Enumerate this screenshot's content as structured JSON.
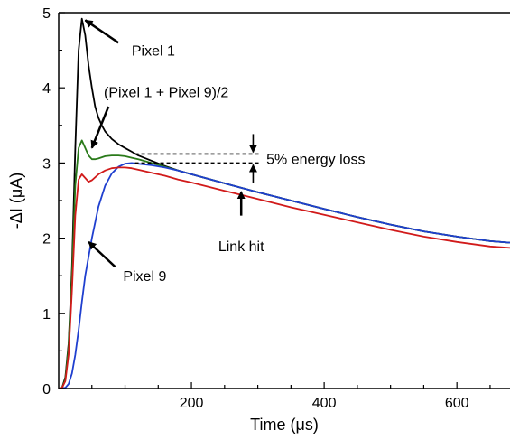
{
  "chart_data": {
    "type": "line",
    "title": "",
    "xlabel": "Time (μs)",
    "ylabel": "-ΔI (μA)",
    "xlim": [
      0,
      680
    ],
    "ylim": [
      0,
      5
    ],
    "xticks": [
      200,
      400,
      600
    ],
    "yticks": [
      0,
      1,
      2,
      3,
      4,
      5
    ],
    "grid": false,
    "series": [
      {
        "name": "Pixel 1",
        "color": "#000000",
        "x": [
          0,
          5,
          10,
          15,
          20,
          25,
          30,
          35,
          40,
          45,
          50,
          55,
          60,
          65,
          70,
          80,
          90,
          100,
          110,
          120,
          140,
          160,
          180,
          200,
          250,
          300,
          350,
          400,
          450,
          500,
          550,
          600,
          650,
          680
        ],
        "y": [
          0,
          0.01,
          0.15,
          0.6,
          1.6,
          3.2,
          4.5,
          4.92,
          4.7,
          4.3,
          4.0,
          3.75,
          3.6,
          3.5,
          3.42,
          3.32,
          3.25,
          3.2,
          3.15,
          3.1,
          3.03,
          2.96,
          2.9,
          2.85,
          2.73,
          2.61,
          2.5,
          2.39,
          2.28,
          2.18,
          2.09,
          2.02,
          1.96,
          1.94
        ]
      },
      {
        "name": "(Pixel 1 + Pixel 9)/2",
        "color": "#2a7a1a",
        "x": [
          0,
          5,
          10,
          15,
          20,
          25,
          30,
          35,
          40,
          45,
          50,
          55,
          60,
          70,
          80,
          90,
          100,
          110,
          120,
          140,
          160,
          180,
          200,
          250,
          300,
          350,
          400,
          450,
          500,
          550,
          600,
          650,
          680
        ],
        "y": [
          0,
          0.01,
          0.12,
          0.55,
          1.5,
          2.7,
          3.2,
          3.3,
          3.2,
          3.1,
          3.05,
          3.05,
          3.06,
          3.09,
          3.1,
          3.1,
          3.09,
          3.07,
          3.05,
          3.0,
          2.95,
          2.9,
          2.85,
          2.73,
          2.61,
          2.5,
          2.39,
          2.28,
          2.18,
          2.09,
          2.02,
          1.96,
          1.94
        ]
      },
      {
        "name": "Pixel 9",
        "color": "#1f3fcf",
        "x": [
          0,
          10,
          15,
          20,
          25,
          30,
          35,
          40,
          50,
          60,
          70,
          80,
          90,
          100,
          110,
          120,
          140,
          160,
          180,
          200,
          250,
          300,
          350,
          400,
          450,
          500,
          550,
          600,
          650,
          680
        ],
        "y": [
          0,
          0.01,
          0.06,
          0.2,
          0.45,
          0.78,
          1.15,
          1.5,
          2.0,
          2.42,
          2.7,
          2.86,
          2.95,
          2.99,
          3.0,
          2.99,
          2.97,
          2.94,
          2.9,
          2.85,
          2.73,
          2.61,
          2.5,
          2.39,
          2.28,
          2.18,
          2.09,
          2.02,
          1.96,
          1.94
        ]
      },
      {
        "name": "Link hit",
        "color": "#d11a1a",
        "x": [
          0,
          5,
          10,
          15,
          20,
          25,
          30,
          35,
          40,
          45,
          50,
          60,
          70,
          80,
          90,
          100,
          110,
          120,
          140,
          160,
          180,
          200,
          250,
          300,
          350,
          400,
          450,
          500,
          550,
          600,
          650,
          680
        ],
        "y": [
          0,
          0.01,
          0.1,
          0.45,
          1.3,
          2.3,
          2.78,
          2.85,
          2.8,
          2.75,
          2.77,
          2.85,
          2.9,
          2.93,
          2.94,
          2.94,
          2.93,
          2.91,
          2.87,
          2.83,
          2.78,
          2.74,
          2.63,
          2.52,
          2.41,
          2.31,
          2.21,
          2.11,
          2.02,
          1.95,
          1.89,
          1.87
        ]
      }
    ],
    "annotations": [
      {
        "id": "pixel1",
        "text": "Pixel 1",
        "tip": [
          40,
          4.9
        ],
        "tail": [
          90,
          4.6
        ],
        "label_at": [
          110,
          4.5
        ]
      },
      {
        "id": "avg",
        "text": "(Pixel 1 + Pixel 9)/2",
        "tip": [
          50,
          3.2
        ],
        "tail": [
          75,
          3.75
        ],
        "label_at": [
          68,
          3.95
        ]
      },
      {
        "id": "pixel9",
        "text": "Pixel 9",
        "tip": [
          45,
          1.95
        ],
        "tail": [
          85,
          1.62
        ],
        "label_at": [
          97,
          1.5
        ]
      },
      {
        "id": "linkhit",
        "text": "Link hit",
        "tip": [
          275,
          2.62
        ],
        "tail": [
          275,
          2.3
        ],
        "label_at": [
          275,
          1.9
        ]
      }
    ],
    "energy_loss": {
      "text": "5% energy loss",
      "y_upper": 3.12,
      "y_lower": 3.0,
      "x_start": 115,
      "x_end": 302,
      "arrow_x": 293,
      "label_at": [
        313,
        3.06
      ]
    }
  }
}
